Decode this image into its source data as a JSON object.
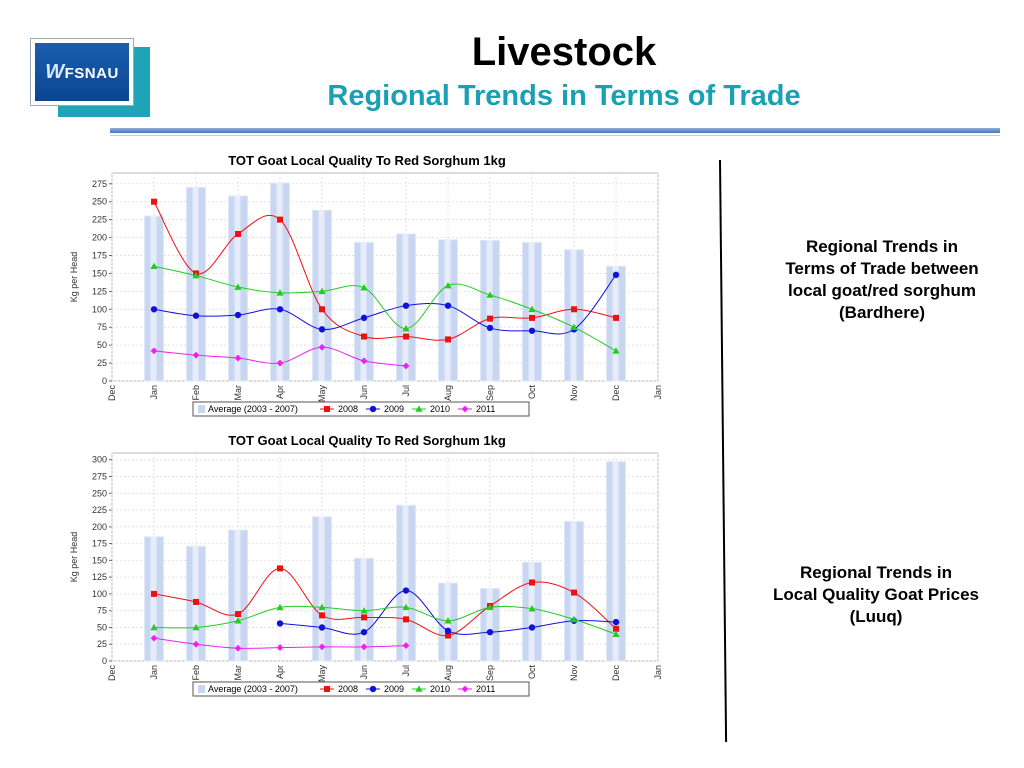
{
  "header": {
    "logo_text": "FSNAU",
    "title": "Livestock",
    "subtitle": "Regional Trends in Terms of Trade"
  },
  "captions": {
    "top": "Regional Trends in\nTerms of Trade between\nlocal goat/red sorghum\n(Bardhere)",
    "bottom": "Regional Trends in\nLocal Quality Goat Prices\n(Luuq)"
  },
  "colors": {
    "accent": "#1aa0b4",
    "series_2008": "#ee1111",
    "series_2009": "#1111dd",
    "series_2010": "#22cc22",
    "series_2011": "#ee22ee",
    "average_bar": "#c8d6f2"
  },
  "chart_data": [
    {
      "type": "bar",
      "title": "TOT Goat Local Quality To Red Sorghum 1kg",
      "xlabel": "",
      "ylabel": "Kg per Head",
      "ylim": [
        0,
        290
      ],
      "yticks": [
        0,
        25,
        50,
        75,
        100,
        125,
        150,
        175,
        200,
        225,
        250,
        275
      ],
      "categories": [
        "Dec",
        "Jan",
        "Feb",
        "Mar",
        "Apr",
        "May",
        "Jun",
        "Jul",
        "Aug",
        "Sep",
        "Oct",
        "Nov",
        "Dec",
        "Jan"
      ],
      "legend_position": "bottom",
      "grid": true,
      "series": [
        {
          "name": "Average (2003 - 2007)",
          "kind": "bar",
          "values": [
            null,
            230,
            270,
            258,
            276,
            238,
            193,
            205,
            197,
            196,
            193,
            183,
            160,
            null
          ]
        },
        {
          "name": "2008",
          "kind": "line",
          "marker": "square",
          "values": [
            null,
            250,
            150,
            205,
            225,
            100,
            62,
            62,
            58,
            87,
            88,
            100,
            88,
            null
          ]
        },
        {
          "name": "2009",
          "kind": "line",
          "marker": "circle",
          "values": [
            null,
            100,
            91,
            92,
            100,
            72,
            88,
            105,
            105,
            74,
            70,
            72,
            148,
            null
          ]
        },
        {
          "name": "2010",
          "kind": "line",
          "marker": "triangle",
          "values": [
            null,
            160,
            147,
            131,
            123,
            125,
            130,
            73,
            133,
            120,
            100,
            75,
            42,
            null
          ]
        },
        {
          "name": "2011",
          "kind": "line",
          "marker": "diamond",
          "values": [
            null,
            42,
            36,
            32,
            25,
            47,
            28,
            21,
            null,
            null,
            null,
            null,
            null,
            null
          ]
        }
      ]
    },
    {
      "type": "bar",
      "title": "TOT Goat Local Quality To Red Sorghum 1kg",
      "xlabel": "",
      "ylabel": "Kg per Head",
      "ylim": [
        0,
        310
      ],
      "yticks": [
        0,
        25,
        50,
        75,
        100,
        125,
        150,
        175,
        200,
        225,
        250,
        275,
        300
      ],
      "categories": [
        "Dec",
        "Jan",
        "Feb",
        "Mar",
        "Apr",
        "May",
        "Jun",
        "Jul",
        "Aug",
        "Sep",
        "Oct",
        "Nov",
        "Dec",
        "Jan"
      ],
      "legend_position": "bottom",
      "grid": true,
      "series": [
        {
          "name": "Average (2003 - 2007)",
          "kind": "bar",
          "values": [
            null,
            185,
            171,
            195,
            null,
            215,
            153,
            232,
            116,
            108,
            147,
            208,
            297,
            null
          ]
        },
        {
          "name": "2008",
          "kind": "line",
          "marker": "square",
          "values": [
            null,
            100,
            88,
            70,
            138,
            68,
            65,
            62,
            38,
            82,
            117,
            102,
            48,
            null
          ]
        },
        {
          "name": "2009",
          "kind": "line",
          "marker": "circle",
          "values": [
            null,
            null,
            null,
            null,
            56,
            50,
            43,
            105,
            45,
            43,
            50,
            60,
            58,
            null
          ]
        },
        {
          "name": "2010",
          "kind": "line",
          "marker": "triangle",
          "values": [
            null,
            50,
            50,
            60,
            80,
            80,
            75,
            80,
            60,
            80,
            78,
            62,
            40,
            null
          ]
        },
        {
          "name": "2011",
          "kind": "line",
          "marker": "diamond",
          "values": [
            null,
            34,
            25,
            19,
            20,
            21,
            21,
            23,
            null,
            null,
            null,
            null,
            null,
            null
          ]
        }
      ]
    }
  ]
}
